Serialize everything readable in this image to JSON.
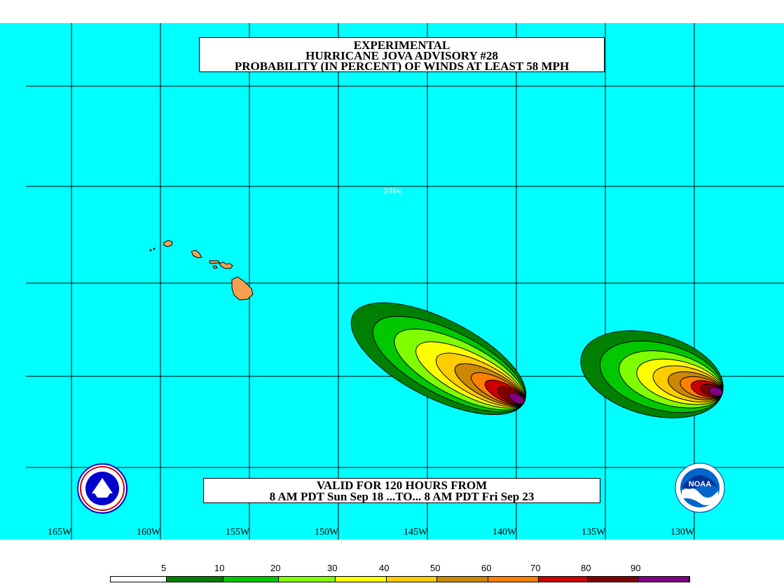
{
  "title": {
    "line1": "EXPERIMENTAL",
    "line2": "HURRICANE JOVA ADVISORY #28",
    "line3": "PROBABILITY (IN PERCENT) OF WINDS AT LEAST 58 MPH"
  },
  "valid": {
    "line1": "VALID FOR 120 HOURS FROM",
    "line2": "8 AM PDT Sun Sep 18 ...TO... 8 AM PDT Fri Sep 23"
  },
  "annotation": "2/Hw",
  "longitudes": [
    "165W",
    "160W",
    "155W",
    "150W",
    "145W",
    "140W",
    "135W",
    "130W"
  ],
  "colors": {
    "ocean": "#00ffff",
    "land": "#f5a050",
    "grid": "#000000"
  },
  "legend": {
    "labels": [
      "5",
      "10",
      "20",
      "30",
      "40",
      "50",
      "60",
      "70",
      "80",
      "90"
    ],
    "colors": [
      "#ffffff",
      "#008000",
      "#00c800",
      "#80ff00",
      "#ffff00",
      "#ffcc00",
      "#cc8800",
      "#ff8000",
      "#cc0000",
      "#800000",
      "#800080"
    ]
  },
  "logos": {
    "left": "nws-logo",
    "right": "noaa-logo",
    "right_text": "NOAA"
  }
}
